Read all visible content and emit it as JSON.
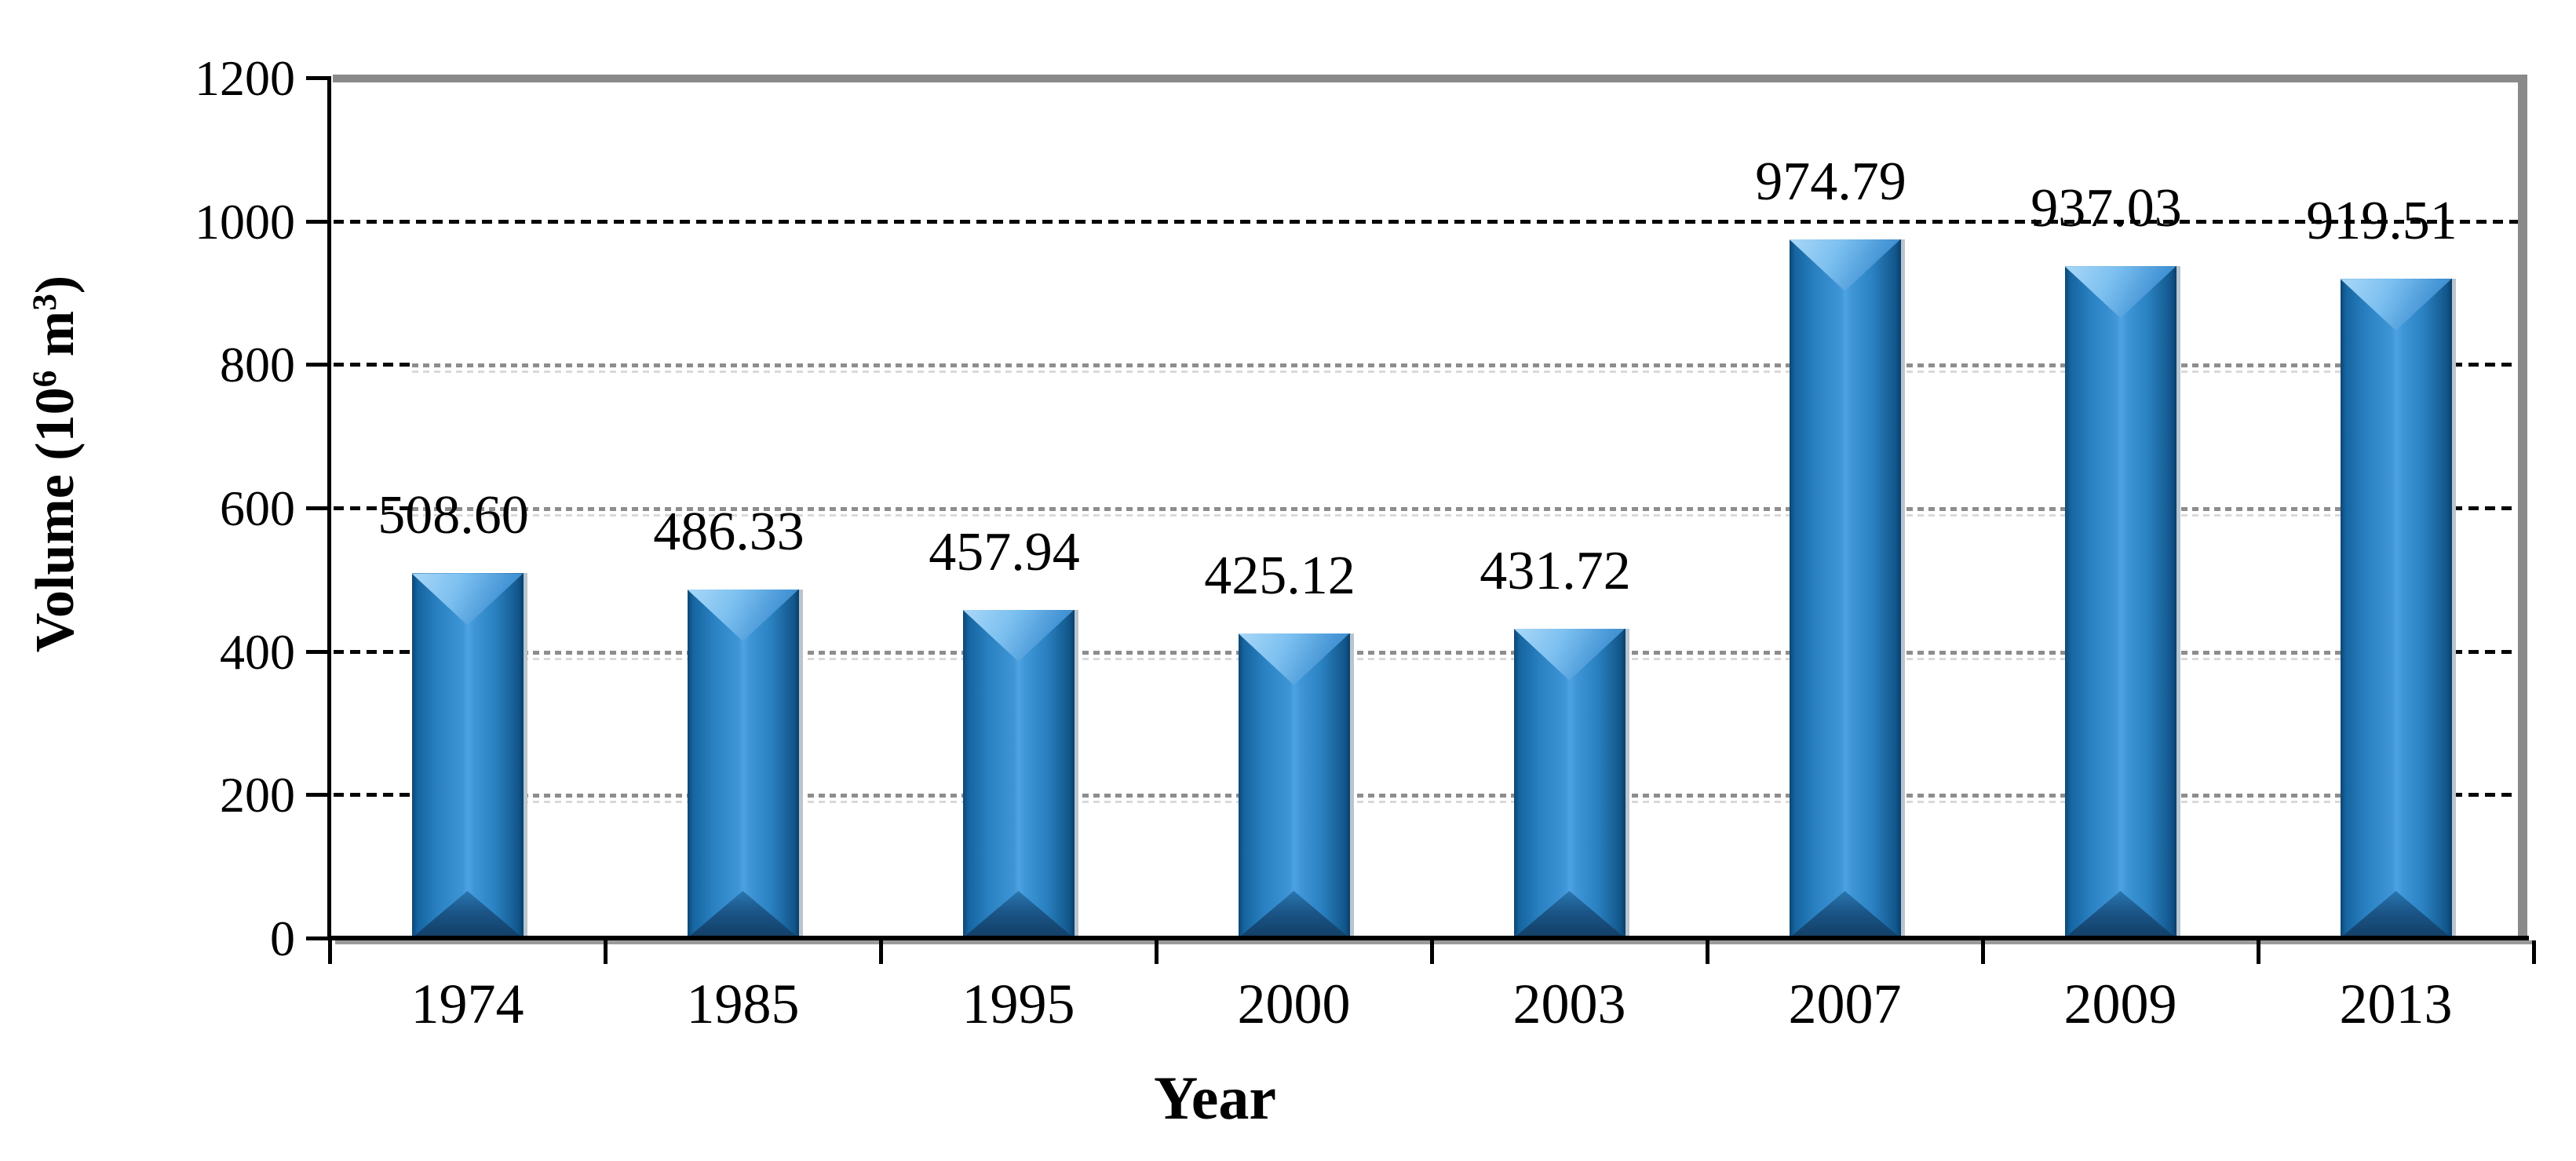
{
  "chart_data": {
    "type": "bar",
    "title": "",
    "categories": [
      "1974",
      "1985",
      "1995",
      "2000",
      "2003",
      "2007",
      "2009",
      "2013"
    ],
    "values": [
      508.6,
      486.33,
      457.94,
      425.12,
      431.72,
      974.79,
      937.03,
      919.51
    ],
    "value_labels": [
      "508.60",
      "486.33",
      "457.94",
      "425.12",
      "431.72",
      "974.79",
      "937.03",
      "919.51"
    ],
    "xlabel": "Year",
    "ylabel": {
      "pre": "Volume (10",
      "sup1": "6",
      "mid": " m",
      "sup2": "3",
      "post": ")"
    },
    "yticks": [
      0,
      200,
      400,
      600,
      800,
      1000,
      1200
    ],
    "ytick_labels": [
      "0",
      "200",
      "400",
      "600",
      "800",
      "1000",
      "1200"
    ],
    "ylim": [
      0,
      1200
    ],
    "legend": null,
    "grid": "horizontal-dashed",
    "colors": {
      "bar_main": "#2b82c2",
      "bar_highlight": "#4da2e2",
      "bar_dark_edge": "#0d4674",
      "bar_bevel_light": "#aad8f8",
      "bar_bevel_dark": "#123e65",
      "gridline_black": "#070707",
      "gridline_gray": "#8d8d8d",
      "wall_gray": "#8a8a8a",
      "axis_black": "#000000",
      "text": "#000000",
      "background": "#ffffff"
    }
  }
}
